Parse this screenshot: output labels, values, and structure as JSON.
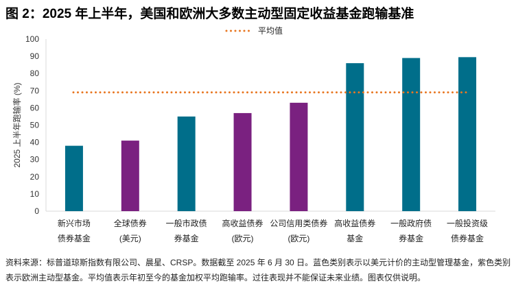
{
  "title": "图 2：2025 年上半年，美国和欧洲大多数主动型固定收益基金跑输基准",
  "chart_data": {
    "type": "bar",
    "title": "图 2：2025 年上半年，美国和欧洲大多数主动型固定收益基金跑输基准",
    "ylabel": "2025 上半年跑输率 (%)",
    "xlabel": "",
    "ylim": [
      0,
      100
    ],
    "yticks": [
      0,
      10,
      20,
      30,
      40,
      50,
      60,
      70,
      80,
      90,
      100
    ],
    "grid": false,
    "legend_position": "top-center",
    "categories": [
      [
        "新兴市场",
        "债券基金"
      ],
      [
        "全球债券",
        "(美元)"
      ],
      [
        "一般市政债",
        "券基金"
      ],
      [
        "高收益债券",
        "(欧元)"
      ],
      [
        "公司信用类债券",
        "(欧元)"
      ],
      [
        "高收益债券",
        "基金"
      ],
      [
        "一般政府债",
        "券基金"
      ],
      [
        "一般投资级",
        "债券基金"
      ]
    ],
    "values": [
      38,
      41,
      55,
      57,
      63,
      86,
      89,
      89.5
    ],
    "bar_colors": [
      "#006E8A",
      "#7A2180",
      "#006E8A",
      "#7A2180",
      "#7A2180",
      "#006E8A",
      "#006E8A",
      "#006E8A"
    ],
    "average_line": {
      "name": "平均值",
      "value": 69,
      "color": "#E87722",
      "style": "dotted"
    }
  },
  "footnote": "资料来源：标普道琼斯指数有限公司、晨星、CRSP。数据截至 2025 年 6 月 30 日。蓝色类别表示以美元计价的主动型管理基金，紫色类别表示欧洲主动型基金。平均值表示年初至今的基金加权平均跑输率。过往表现并不能保证未来业绩。图表仅供说明。"
}
